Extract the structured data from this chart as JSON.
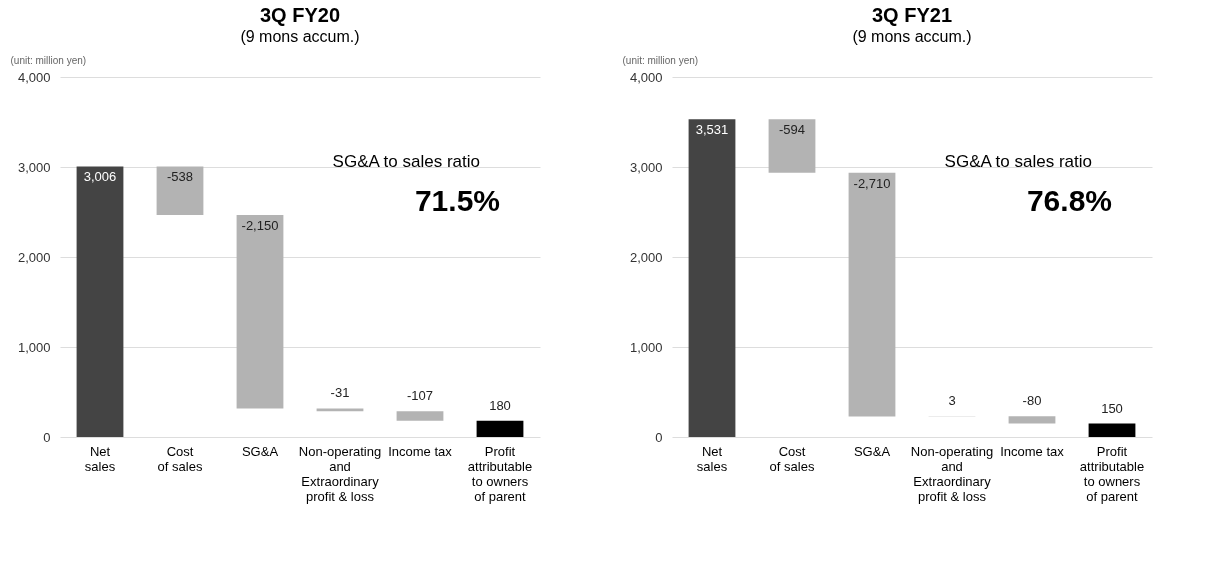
{
  "chart_data": [
    {
      "type": "bar",
      "title": "3Q FY20",
      "subtitle": "(9 mons accum.)",
      "ylabel": "(unit: million yen)",
      "categories": [
        "Net\nsales",
        "Cost\nof sales",
        "SG&A",
        "Non-operating\nand\nExtraordinary\nprofit & loss",
        "Income tax",
        "Profit\nattributable\nto owners\nof parent"
      ],
      "values": [
        3006,
        -538,
        -2150,
        -31,
        -107,
        180
      ],
      "base": [
        0,
        3006,
        2468,
        318,
        287,
        0
      ],
      "value_labels": [
        "3,006",
        "-538",
        "-2,150",
        "-31",
        "-107",
        "180"
      ],
      "colors": [
        "#444444",
        "#b3b3b3",
        "#b3b3b3",
        "#b3b3b3",
        "#b3b3b3",
        "#000000"
      ],
      "ylim": [
        0,
        4000
      ],
      "yticks": [
        {
          "value": 0,
          "label": "0"
        },
        {
          "value": 1000,
          "label": "1,000"
        },
        {
          "value": 2000,
          "label": "2,000"
        },
        {
          "value": 3000,
          "label": "3,000"
        },
        {
          "value": 4000,
          "label": "4,000"
        }
      ],
      "grid": "y",
      "annotations": [
        "SG&A to sales ratio",
        "71.5%"
      ]
    },
    {
      "type": "bar",
      "title": "3Q FY21",
      "subtitle": "(9 mons accum.)",
      "ylabel": "(unit: million yen)",
      "categories": [
        "Net\nsales",
        "Cost\nof sales",
        "SG&A",
        "Non-operating\nand\nExtraordinary\nprofit & loss",
        "Income tax",
        "Profit\nattributable\nto owners\nof parent"
      ],
      "values": [
        3531,
        -594,
        -2710,
        3,
        -80,
        150
      ],
      "base": [
        0,
        3531,
        2937,
        227,
        230,
        0
      ],
      "value_labels": [
        "3,531",
        "-594",
        "-2,710",
        "3",
        "-80",
        "150"
      ],
      "colors": [
        "#444444",
        "#b3b3b3",
        "#b3b3b3",
        "#b3b3b3",
        "#b3b3b3",
        "#000000"
      ],
      "ylim": [
        0,
        4000
      ],
      "yticks": [
        {
          "value": 0,
          "label": "0"
        },
        {
          "value": 1000,
          "label": "1,000"
        },
        {
          "value": 2000,
          "label": "2,000"
        },
        {
          "value": 3000,
          "label": "3,000"
        },
        {
          "value": 4000,
          "label": "4,000"
        }
      ],
      "grid": "y",
      "annotations": [
        "SG&A to sales ratio",
        "76.8%"
      ]
    }
  ]
}
